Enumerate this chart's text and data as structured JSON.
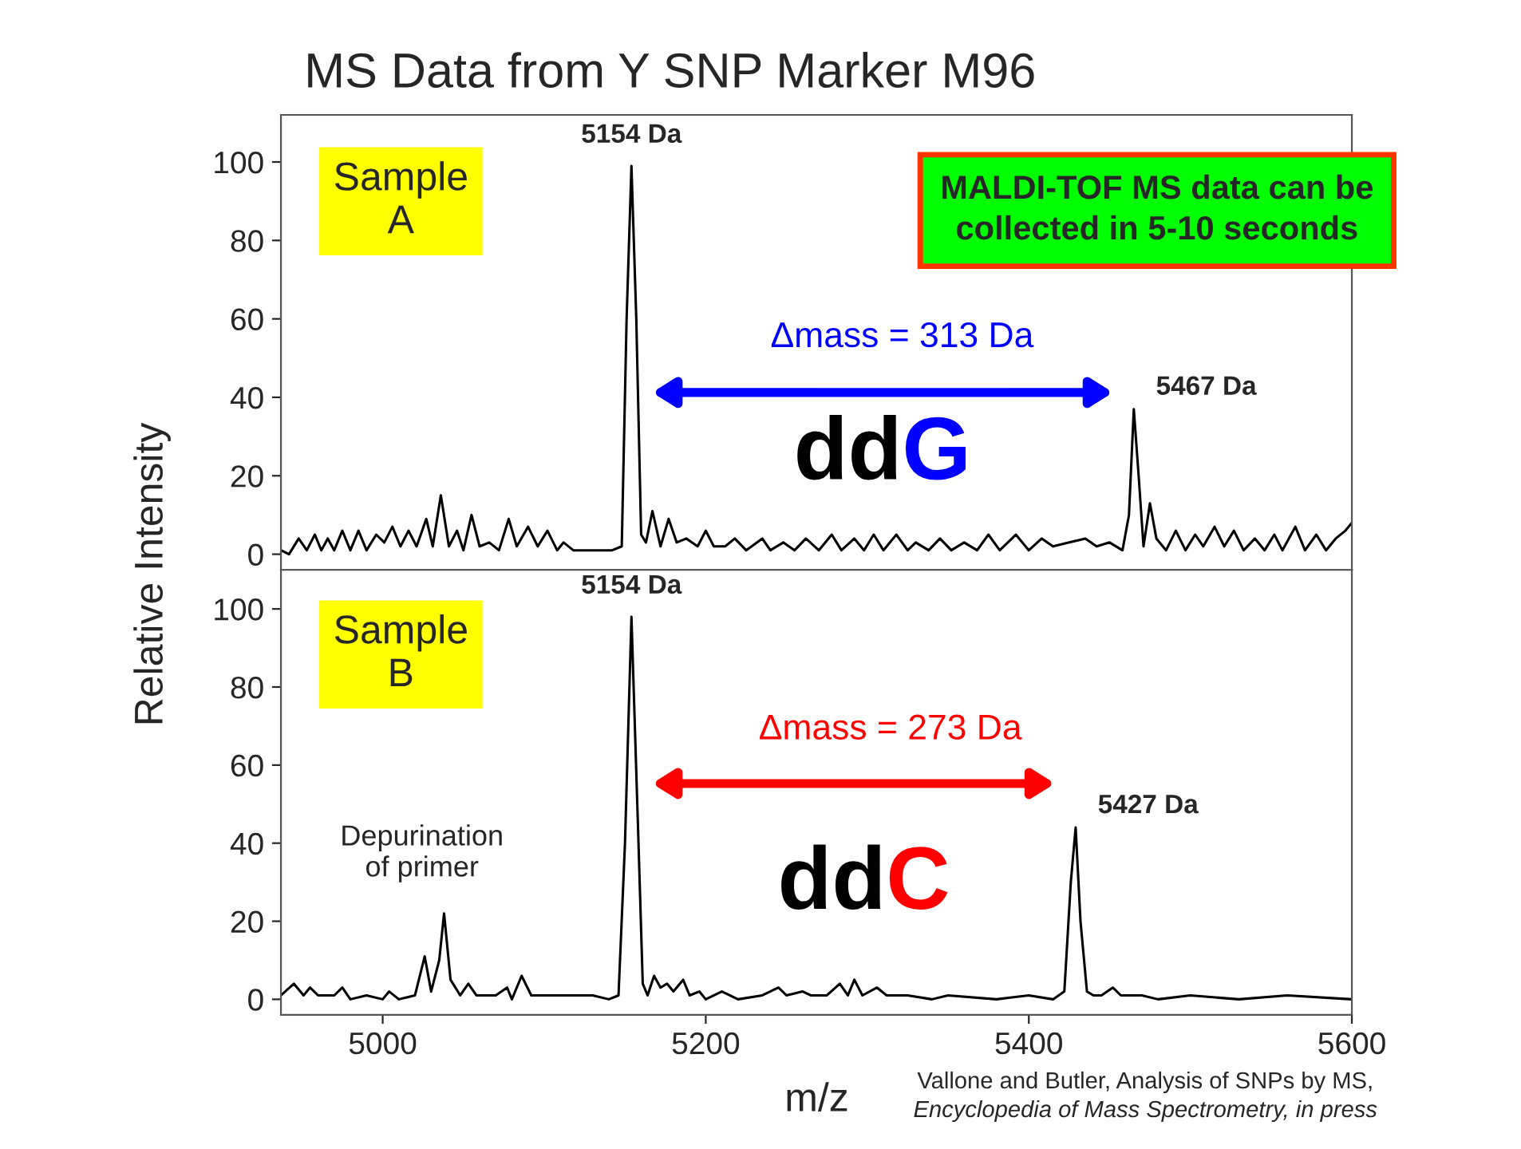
{
  "chart_data": [
    {
      "type": "line",
      "title": "MS Data from Y SNP Marker M96",
      "ylabel": "Relative Intensity",
      "xlim": [
        4937,
        5600
      ],
      "ylim": [
        -4,
        112
      ],
      "yticks": [
        0,
        20,
        40,
        60,
        80,
        100
      ],
      "tick_labels": "y",
      "grid": false,
      "legend": false,
      "series": [
        {
          "color": "#000000",
          "x": [
            4937,
            4942,
            4948,
            4953,
            4958,
            4962,
            4966,
            4970,
            4975,
            4980,
            4985,
            4990,
            4996,
            5001,
            5006,
            5011,
            5016,
            5021,
            5027,
            5031,
            5036,
            5041,
            5046,
            5050,
            5055,
            5060,
            5066,
            5072,
            5078,
            5083,
            5090,
            5096,
            5102,
            5108,
            5112,
            5118,
            5128,
            5142,
            5148,
            5151,
            5154,
            5157,
            5160,
            5163,
            5167,
            5172,
            5177,
            5182,
            5188,
            5195,
            5200,
            5205,
            5212,
            5218,
            5225,
            5235,
            5240,
            5248,
            5255,
            5262,
            5270,
            5278,
            5284,
            5292,
            5298,
            5304,
            5310,
            5318,
            5325,
            5330,
            5338,
            5345,
            5352,
            5360,
            5368,
            5375,
            5382,
            5392,
            5400,
            5408,
            5415,
            5425,
            5435,
            5442,
            5450,
            5458,
            5462,
            5465,
            5468,
            5471,
            5475,
            5479,
            5485,
            5491,
            5497,
            5503,
            5508,
            5515,
            5521,
            5527,
            5533,
            5540,
            5546,
            5552,
            5557,
            5565,
            5571,
            5578,
            5584,
            5590,
            5596,
            5600
          ],
          "values": [
            1,
            0,
            4,
            1,
            5,
            1,
            4,
            1,
            6,
            1,
            6,
            1,
            5,
            3,
            7,
            2,
            6,
            2,
            9,
            2,
            15,
            2,
            6,
            1,
            10,
            2,
            3,
            1,
            9,
            2,
            7,
            2,
            6,
            1,
            3,
            1,
            1,
            1,
            2,
            60,
            99,
            60,
            5,
            3,
            11,
            2,
            9,
            3,
            4,
            2,
            6,
            2,
            2,
            4,
            1,
            4,
            1,
            3,
            1,
            4,
            1,
            5,
            1,
            4,
            1,
            5,
            1,
            5,
            1,
            3,
            1,
            4,
            1,
            3,
            1,
            5,
            1,
            5,
            1,
            4,
            2,
            3,
            4,
            2,
            3,
            1,
            10,
            37,
            20,
            2,
            13,
            4,
            1,
            6,
            1,
            5,
            2,
            7,
            2,
            6,
            1,
            4,
            1,
            5,
            1,
            7,
            1,
            5,
            1,
            4,
            6,
            8
          ]
        }
      ],
      "annotations": [
        "Sample\nA",
        {
          "text": "5154 Da",
          "x": 5154,
          "y": 99
        },
        {
          "text": "5467 Da",
          "x": 5465,
          "y": 37
        },
        "Δmass = 313 Da",
        "ddG",
        "MALDI-TOF MS data can be\ncollected in 5-10 seconds"
      ]
    },
    {
      "type": "line",
      "xlabel": "m/z",
      "xlim": [
        4937,
        5600
      ],
      "xticks": [
        5000,
        5200,
        5400,
        5600
      ],
      "ylim": [
        -4,
        110
      ],
      "yticks": [
        0,
        20,
        40,
        60,
        80,
        100
      ],
      "grid": false,
      "legend": false,
      "series": [
        {
          "color": "#000000",
          "x": [
            4937,
            4945,
            4951,
            4955,
            4960,
            4970,
            4975,
            4980,
            4990,
            5000,
            5004,
            5010,
            5020,
            5026,
            5030,
            5035,
            5038,
            5042,
            5048,
            5053,
            5058,
            5070,
            5077,
            5080,
            5086,
            5092,
            5100,
            5110,
            5120,
            5130,
            5140,
            5146,
            5150,
            5154,
            5158,
            5161,
            5164,
            5168,
            5172,
            5176,
            5180,
            5186,
            5190,
            5196,
            5200,
            5210,
            5220,
            5235,
            5245,
            5250,
            5260,
            5265,
            5275,
            5283,
            5288,
            5292,
            5297,
            5306,
            5312,
            5325,
            5340,
            5350,
            5380,
            5400,
            5415,
            5422,
            5426,
            5429,
            5432,
            5436,
            5440,
            5445,
            5452,
            5457,
            5470,
            5480,
            5500,
            5530,
            5560,
            5600
          ],
          "values": [
            1,
            4,
            1,
            3,
            1,
            1,
            3,
            0,
            1,
            0,
            2,
            0,
            1,
            11,
            2,
            10,
            22,
            5,
            1,
            4,
            1,
            1,
            3,
            0,
            6,
            1,
            1,
            1,
            1,
            1,
            0,
            1,
            40,
            98,
            45,
            4,
            1,
            6,
            3,
            4,
            2,
            5,
            1,
            2,
            0,
            2,
            0,
            1,
            3,
            1,
            2,
            1,
            1,
            4,
            1,
            5,
            1,
            3,
            1,
            1,
            0,
            1,
            0,
            1,
            0,
            2,
            30,
            44,
            20,
            2,
            1,
            1,
            3,
            1,
            1,
            0,
            1,
            0,
            1,
            0
          ]
        }
      ],
      "annotations": [
        "Sample\nB",
        {
          "text": "5154 Da",
          "x": 5154,
          "y": 98
        },
        {
          "text": "5427 Da",
          "x": 5429,
          "y": 44
        },
        "Δmass = 273 Da",
        "ddC",
        {
          "text": "Depurination\nof primer",
          "x": 5038,
          "y": 22
        },
        "Vallone and Butler, Analysis of SNPs by MS,",
        "Encyclopedia of Mass Spectrometry, in press"
      ]
    }
  ]
}
